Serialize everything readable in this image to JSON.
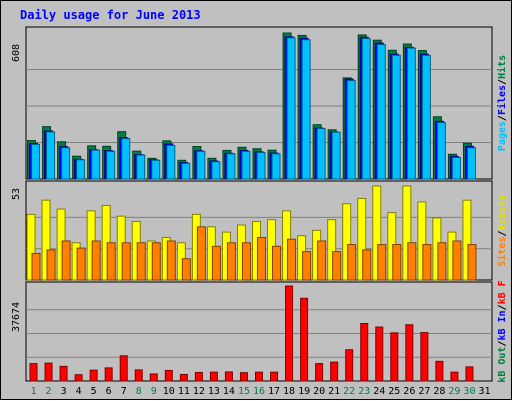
{
  "chart_data": {
    "type": "bar",
    "title": "Daily usage for June 2013",
    "categories": [
      "1",
      "2",
      "3",
      "4",
      "5",
      "6",
      "7",
      "8",
      "9",
      "10",
      "11",
      "12",
      "13",
      "14",
      "15",
      "16",
      "17",
      "18",
      "19",
      "20",
      "21",
      "22",
      "23",
      "24",
      "25",
      "26",
      "27",
      "28",
      "29",
      "30",
      "31"
    ],
    "weekend_days": [
      "1",
      "2",
      "8",
      "9",
      "15",
      "16",
      "22",
      "23",
      "29",
      "30"
    ],
    "panels": [
      {
        "id": "top",
        "ymax": 608,
        "ymax_label": "608",
        "legend": [
          {
            "text": "Hits",
            "color": "#008040"
          },
          {
            "text": "/",
            "color": "#000000"
          },
          {
            "text": "Files",
            "color": "#0000ff"
          },
          {
            "text": "/",
            "color": "#000000"
          },
          {
            "text": "Pages",
            "color": "#00c0ff"
          }
        ],
        "series": [
          {
            "name": "Hits",
            "color": "#008040",
            "values": [
              160,
              218,
              155,
              95,
              138,
              136,
              197,
              116,
              86,
              159,
              78,
              135,
              86,
              119,
              132,
              126,
              120,
              608,
              598,
              226,
              205,
              421,
              600,
              578,
              536,
              562,
              535,
              259,
              103,
              149,
              0
            ]
          },
          {
            "name": "Files",
            "color": "#0000ff",
            "values": [
              148,
              200,
              135,
              82,
              122,
              118,
              172,
              102,
              80,
              146,
              68,
              118,
              75,
              107,
              119,
              113,
              108,
              592,
              586,
              212,
              196,
              416,
              590,
              566,
              520,
              548,
              520,
              240,
              94,
              136,
              0
            ]
          },
          {
            "name": "Pages",
            "color": "#00c0ff",
            "values": [
              144,
              196,
              130,
              80,
              120,
              115,
              168,
              100,
              78,
              140,
              65,
              115,
              72,
              105,
              115,
              110,
              105,
              588,
              580,
              210,
              195,
              410,
              585,
              560,
              515,
              545,
              515,
              235,
              90,
              130,
              0
            ]
          }
        ]
      },
      {
        "id": "middle",
        "ymax": 53,
        "ymax_label": "53",
        "legend": [
          {
            "text": "Visits",
            "color": "#e0e000"
          },
          {
            "text": "/",
            "color": "#000000"
          },
          {
            "text": "Sites",
            "color": "#ff8000"
          }
        ],
        "series": [
          {
            "name": "Visits",
            "color": "#ffff00",
            "values": [
              37,
              45,
              40,
              21,
              39,
              42,
              36,
              33,
              22,
              24,
              21,
              37,
              30,
              27,
              31,
              33,
              34,
              39,
              25,
              28,
              34,
              43,
              46,
              53,
              38,
              53,
              44,
              35,
              27,
              45,
              0
            ]
          },
          {
            "name": "Sites",
            "color": "#ff8000",
            "values": [
              15,
              17,
              22,
              18,
              22,
              21,
              21,
              21,
              21,
              22,
              12,
              30,
              19,
              21,
              21,
              24,
              19,
              23,
              16,
              22,
              16,
              20,
              17,
              20,
              20,
              21,
              20,
              21,
              22,
              20,
              0
            ]
          }
        ]
      },
      {
        "id": "bottom",
        "ymax": 37674,
        "ymax_label": "37674",
        "legend": [
          {
            "text": "kB F",
            "color": "#ff0000"
          },
          {
            "text": "/",
            "color": "#000000"
          },
          {
            "text": "kB In",
            "color": "#0000ff"
          },
          {
            "text": "/",
            "color": "#000000"
          },
          {
            "text": "kB Out",
            "color": "#008040"
          }
        ],
        "series": [
          {
            "name": "kB F",
            "color": "#ff0000",
            "values": [
              6900,
              7100,
              5800,
              2500,
              4300,
              5200,
              10000,
              4400,
              2800,
              4200,
              2600,
              3400,
              3500,
              3600,
              3300,
              3500,
              3500,
              37674,
              32800,
              6900,
              7500,
              12400,
              22800,
              21400,
              19100,
              22300,
              19200,
              7800,
              3500,
              5600,
              0
            ]
          }
        ]
      }
    ]
  }
}
